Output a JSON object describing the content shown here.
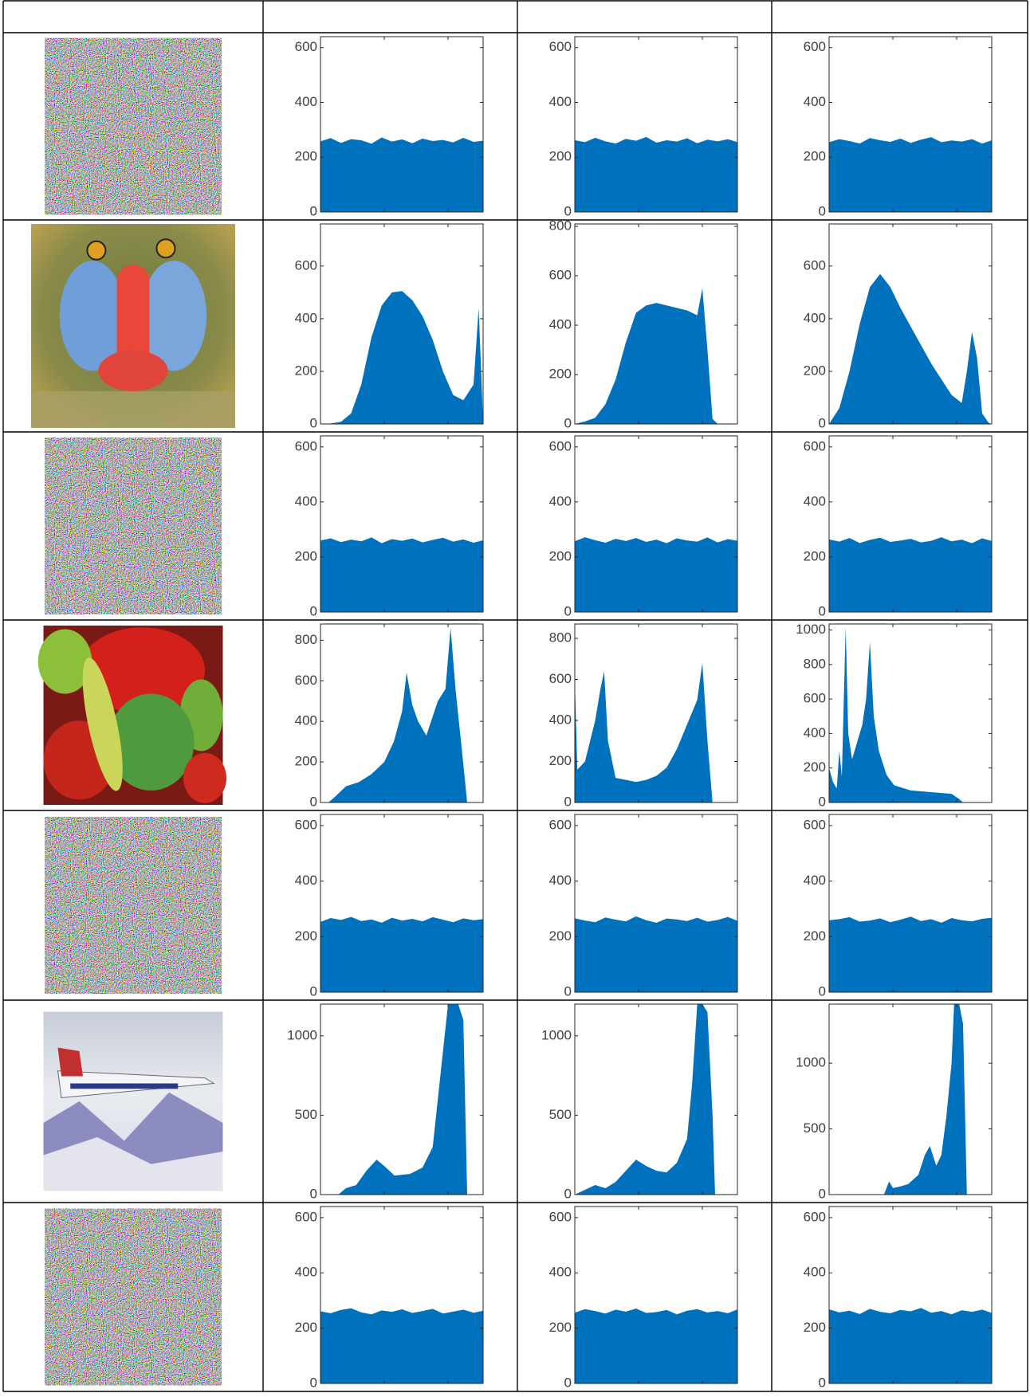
{
  "chart_data": [
    {
      "type": "area",
      "color": "#0072bd",
      "xlim": [
        0,
        255
      ],
      "xticks": [
        100,
        200
      ],
      "ylim": [
        0,
        640
      ],
      "yticks": [
        0,
        200,
        400,
        600
      ],
      "x": [
        0,
        16,
        32,
        48,
        64,
        80,
        96,
        112,
        128,
        144,
        160,
        176,
        192,
        208,
        224,
        240,
        255
      ],
      "values": [
        258,
        270,
        252,
        266,
        262,
        249,
        272,
        257,
        265,
        251,
        268,
        259,
        263,
        254,
        271,
        256,
        260
      ]
    },
    {
      "type": "area",
      "color": "#0072bd",
      "xlim": [
        0,
        255
      ],
      "xticks": [
        100,
        200
      ],
      "ylim": [
        0,
        640
      ],
      "yticks": [
        0,
        200,
        400,
        600
      ],
      "x": [
        0,
        16,
        32,
        48,
        64,
        80,
        96,
        112,
        128,
        144,
        160,
        176,
        192,
        208,
        224,
        240,
        255
      ],
      "values": [
        262,
        255,
        271,
        258,
        250,
        267,
        260,
        274,
        253,
        262,
        257,
        269,
        251,
        264,
        258,
        266,
        255
      ]
    },
    {
      "type": "area",
      "color": "#0072bd",
      "xlim": [
        0,
        255
      ],
      "xticks": [
        100,
        200
      ],
      "ylim": [
        0,
        640
      ],
      "yticks": [
        0,
        200,
        400,
        600
      ],
      "x": [
        0,
        16,
        32,
        48,
        64,
        80,
        96,
        112,
        128,
        144,
        160,
        176,
        192,
        208,
        224,
        240,
        255
      ],
      "values": [
        255,
        266,
        259,
        250,
        270,
        262,
        256,
        268,
        252,
        264,
        273,
        255,
        261,
        257,
        266,
        250,
        262
      ]
    },
    {
      "type": "area",
      "color": "#0072bd",
      "xlim": [
        0,
        255
      ],
      "xticks": [
        100,
        200
      ],
      "ylim": [
        0,
        760
      ],
      "yticks": [
        0,
        200,
        400,
        600
      ],
      "x": [
        0,
        16,
        32,
        48,
        64,
        80,
        96,
        112,
        128,
        144,
        160,
        176,
        192,
        208,
        224,
        240,
        248,
        252,
        255
      ],
      "values": [
        0,
        2,
        8,
        40,
        150,
        330,
        450,
        500,
        505,
        470,
        410,
        320,
        200,
        110,
        90,
        150,
        440,
        200,
        0
      ]
    },
    {
      "type": "area",
      "color": "#0072bd",
      "xlim": [
        0,
        255
      ],
      "xticks": [
        100,
        200
      ],
      "ylim": [
        0,
        810
      ],
      "yticks": [
        0,
        200,
        400,
        600,
        800
      ],
      "x": [
        0,
        16,
        32,
        48,
        64,
        80,
        96,
        112,
        128,
        144,
        160,
        176,
        192,
        200,
        208,
        216,
        224,
        255
      ],
      "values": [
        0,
        10,
        25,
        80,
        180,
        330,
        450,
        480,
        490,
        480,
        470,
        460,
        440,
        550,
        300,
        20,
        0,
        0
      ]
    },
    {
      "type": "area",
      "color": "#0072bd",
      "xlim": [
        0,
        255
      ],
      "xticks": [
        100,
        200
      ],
      "ylim": [
        0,
        760
      ],
      "yticks": [
        0,
        200,
        400,
        600
      ],
      "x": [
        0,
        16,
        32,
        48,
        64,
        80,
        96,
        112,
        128,
        144,
        160,
        176,
        192,
        208,
        216,
        224,
        232,
        240,
        250,
        255
      ],
      "values": [
        0,
        60,
        200,
        380,
        520,
        570,
        520,
        440,
        370,
        300,
        230,
        170,
        110,
        80,
        200,
        350,
        250,
        40,
        5,
        0
      ]
    },
    {
      "type": "area",
      "color": "#0072bd",
      "xlim": [
        0,
        255
      ],
      "xticks": [
        100,
        200
      ],
      "ylim": [
        0,
        640
      ],
      "yticks": [
        0,
        200,
        400,
        600
      ],
      "x": [
        0,
        16,
        32,
        48,
        64,
        80,
        96,
        112,
        128,
        144,
        160,
        176,
        192,
        208,
        224,
        240,
        255
      ],
      "values": [
        260,
        268,
        254,
        263,
        257,
        271,
        250,
        265,
        259,
        267,
        253,
        262,
        270,
        256,
        264,
        252,
        261
      ]
    },
    {
      "type": "area",
      "color": "#0072bd",
      "xlim": [
        0,
        255
      ],
      "xticks": [
        100,
        200
      ],
      "ylim": [
        0,
        640
      ],
      "yticks": [
        0,
        200,
        400,
        600
      ],
      "x": [
        0,
        16,
        32,
        48,
        64,
        80,
        96,
        112,
        128,
        144,
        160,
        176,
        192,
        208,
        224,
        240,
        255
      ],
      "values": [
        257,
        272,
        261,
        252,
        266,
        258,
        269,
        255,
        263,
        250,
        268,
        260,
        256,
        271,
        253,
        265,
        259
      ]
    },
    {
      "type": "area",
      "color": "#0072bd",
      "xlim": [
        0,
        255
      ],
      "xticks": [
        100,
        200
      ],
      "ylim": [
        0,
        640
      ],
      "yticks": [
        0,
        200,
        400,
        600
      ],
      "x": [
        0,
        16,
        32,
        48,
        64,
        80,
        96,
        112,
        128,
        144,
        160,
        176,
        192,
        208,
        224,
        240,
        255
      ],
      "values": [
        264,
        256,
        269,
        251,
        262,
        270,
        255,
        260,
        266,
        253,
        259,
        272,
        257,
        263,
        250,
        268,
        258
      ]
    },
    {
      "type": "area",
      "color": "#0072bd",
      "xlim": [
        0,
        255
      ],
      "xticks": [
        100,
        200
      ],
      "ylim": [
        0,
        880
      ],
      "yticks": [
        0,
        200,
        400,
        600,
        800
      ],
      "x": [
        0,
        12,
        20,
        40,
        60,
        80,
        100,
        115,
        128,
        135,
        144,
        153,
        166,
        184,
        196,
        204,
        212,
        222,
        230,
        255
      ],
      "values": [
        0,
        0,
        20,
        80,
        100,
        140,
        200,
        300,
        450,
        640,
        480,
        400,
        330,
        500,
        560,
        860,
        550,
        250,
        0,
        0
      ]
    },
    {
      "type": "area",
      "color": "#0072bd",
      "xlim": [
        0,
        255
      ],
      "xticks": [
        100,
        200
      ],
      "ylim": [
        0,
        870
      ],
      "yticks": [
        0,
        200,
        400,
        600,
        800
      ],
      "x": [
        0,
        4,
        16,
        32,
        40,
        46,
        52,
        64,
        80,
        96,
        112,
        128,
        144,
        160,
        176,
        192,
        200,
        208,
        216,
        255
      ],
      "values": [
        600,
        160,
        200,
        400,
        550,
        640,
        300,
        120,
        110,
        100,
        110,
        130,
        170,
        260,
        380,
        500,
        680,
        300,
        0,
        0
      ]
    },
    {
      "type": "area",
      "color": "#0072bd",
      "xlim": [
        0,
        255
      ],
      "xticks": [
        100,
        200
      ],
      "ylim": [
        0,
        1035
      ],
      "yticks": [
        0,
        200,
        400,
        600,
        800,
        1000
      ],
      "x": [
        0,
        6,
        12,
        16,
        20,
        26,
        30,
        36,
        44,
        52,
        58,
        64,
        70,
        78,
        90,
        102,
        128,
        160,
        192,
        204,
        210,
        255
      ],
      "values": [
        200,
        120,
        80,
        300,
        150,
        1020,
        400,
        250,
        350,
        450,
        600,
        930,
        500,
        300,
        160,
        100,
        70,
        60,
        50,
        20,
        0,
        0
      ]
    },
    {
      "type": "area",
      "color": "#0072bd",
      "xlim": [
        0,
        255
      ],
      "xticks": [
        100,
        200
      ],
      "ylim": [
        0,
        640
      ],
      "yticks": [
        0,
        200,
        400,
        600
      ],
      "x": [
        0,
        16,
        32,
        48,
        64,
        80,
        96,
        112,
        128,
        144,
        160,
        176,
        192,
        208,
        224,
        240,
        255
      ],
      "values": [
        253,
        267,
        260,
        271,
        256,
        262,
        250,
        268,
        258,
        264,
        255,
        270,
        261,
        252,
        266,
        259,
        263
      ]
    },
    {
      "type": "area",
      "color": "#0072bd",
      "xlim": [
        0,
        255
      ],
      "xticks": [
        100,
        200
      ],
      "ylim": [
        0,
        640
      ],
      "yticks": [
        0,
        200,
        400,
        600
      ],
      "x": [
        0,
        16,
        32,
        48,
        64,
        80,
        96,
        112,
        128,
        144,
        160,
        176,
        192,
        208,
        224,
        240,
        255
      ],
      "values": [
        266,
        258,
        252,
        269,
        261,
        255,
        273,
        259,
        250,
        265,
        262,
        256,
        268,
        254,
        260,
        271,
        257
      ]
    },
    {
      "type": "area",
      "color": "#0072bd",
      "xlim": [
        0,
        255
      ],
      "xticks": [
        100,
        200
      ],
      "ylim": [
        0,
        640
      ],
      "yticks": [
        0,
        200,
        400,
        600
      ],
      "x": [
        0,
        16,
        32,
        48,
        64,
        80,
        96,
        112,
        128,
        144,
        160,
        176,
        192,
        208,
        224,
        240,
        255
      ],
      "values": [
        259,
        263,
        270,
        254,
        258,
        266,
        252,
        261,
        272,
        256,
        263,
        250,
        267,
        259,
        255,
        264,
        268
      ]
    },
    {
      "type": "area",
      "color": "#0072bd",
      "xlim": [
        0,
        255
      ],
      "xticks": [
        100,
        200
      ],
      "ylim": [
        0,
        1200
      ],
      "yticks": [
        0,
        500,
        1000
      ],
      "x": [
        0,
        28,
        40,
        56,
        72,
        88,
        100,
        116,
        140,
        160,
        176,
        184,
        192,
        200,
        208,
        216,
        224,
        230,
        255
      ],
      "values": [
        0,
        0,
        40,
        60,
        150,
        220,
        180,
        120,
        130,
        170,
        300,
        600,
        900,
        1200,
        1200,
        1200,
        1100,
        0,
        0
      ]
    },
    {
      "type": "area",
      "color": "#0072bd",
      "xlim": [
        0,
        255
      ],
      "xticks": [
        100,
        200
      ],
      "ylim": [
        0,
        1200
      ],
      "yticks": [
        0,
        500,
        1000
      ],
      "x": [
        0,
        16,
        32,
        48,
        64,
        80,
        96,
        112,
        128,
        144,
        160,
        176,
        184,
        192,
        200,
        208,
        216,
        220,
        255
      ],
      "values": [
        0,
        30,
        60,
        40,
        80,
        150,
        220,
        180,
        150,
        140,
        200,
        350,
        700,
        1200,
        1200,
        1150,
        500,
        0,
        0
      ]
    },
    {
      "type": "area",
      "color": "#0072bd",
      "xlim": [
        0,
        255
      ],
      "xticks": [
        100,
        200
      ],
      "ylim": [
        0,
        1450
      ],
      "yticks": [
        0,
        500,
        1000
      ],
      "x": [
        0,
        86,
        94,
        100,
        110,
        124,
        140,
        150,
        158,
        168,
        176,
        184,
        192,
        196,
        204,
        210,
        216,
        255
      ],
      "values": [
        0,
        0,
        100,
        50,
        60,
        80,
        150,
        300,
        370,
        220,
        300,
        600,
        1000,
        1450,
        1450,
        1300,
        0,
        0
      ]
    },
    {
      "type": "area",
      "color": "#0072bd",
      "xlim": [
        0,
        255
      ],
      "xticks": [
        100,
        200
      ],
      "ylim": [
        0,
        640
      ],
      "yticks": [
        0,
        200,
        400,
        600
      ],
      "x": [
        0,
        16,
        32,
        48,
        64,
        80,
        96,
        112,
        128,
        144,
        160,
        176,
        192,
        208,
        224,
        240,
        255
      ],
      "values": [
        261,
        254,
        266,
        272,
        257,
        250,
        264,
        259,
        268,
        255,
        262,
        270,
        253,
        260,
        267,
        256,
        263
      ]
    },
    {
      "type": "area",
      "color": "#0072bd",
      "xlim": [
        0,
        255
      ],
      "xticks": [
        100,
        200
      ],
      "ylim": [
        0,
        640
      ],
      "yticks": [
        0,
        200,
        400,
        600
      ],
      "x": [
        0,
        16,
        32,
        48,
        64,
        80,
        96,
        112,
        128,
        144,
        160,
        176,
        192,
        208,
        224,
        240,
        255
      ],
      "values": [
        256,
        269,
        262,
        253,
        267,
        260,
        271,
        255,
        258,
        266,
        250,
        263,
        269,
        257,
        262,
        254,
        268
      ]
    },
    {
      "type": "area",
      "color": "#0072bd",
      "xlim": [
        0,
        255
      ],
      "xticks": [
        100,
        200
      ],
      "ylim": [
        0,
        640
      ],
      "yticks": [
        0,
        200,
        400,
        600
      ],
      "x": [
        0,
        16,
        32,
        48,
        64,
        80,
        96,
        112,
        128,
        144,
        160,
        176,
        192,
        208,
        224,
        240,
        255
      ],
      "values": [
        268,
        257,
        263,
        251,
        270,
        259,
        254,
        266,
        261,
        273,
        256,
        262,
        250,
        265,
        259,
        267,
        255
      ]
    }
  ]
}
